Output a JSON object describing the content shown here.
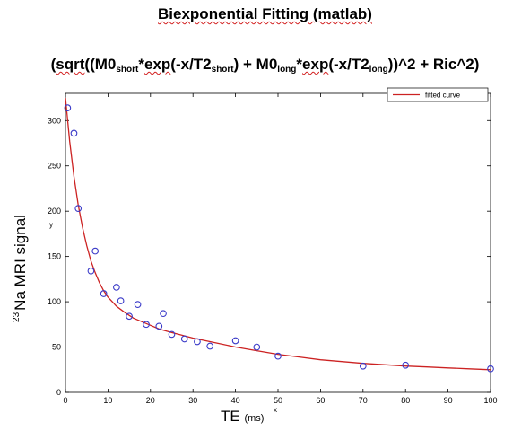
{
  "heading": {
    "title": "Biexponential Fitting (matlab)",
    "formula_parts": [
      "(",
      "sqrt",
      "((M0",
      "short",
      "*",
      "exp",
      "(-x/T2",
      "short",
      ") + M0",
      "long",
      "*",
      "exp",
      "(-x/T2",
      "long",
      "))^2 + Ric^2)"
    ]
  },
  "colors": {
    "curve": "#cc2222",
    "points": "#3a3ac8",
    "axis": "#000000"
  },
  "chart_data": {
    "type": "scatter",
    "xlabel": "TE",
    "xlabel_unit": "(ms)",
    "xlabel_small": "x",
    "ylabel": "Na MRI signal",
    "ylabel_superscript": "23",
    "ylabel_small": "y",
    "xlim": [
      0,
      100
    ],
    "ylim": [
      0,
      330
    ],
    "x_ticks": [
      0,
      10,
      20,
      30,
      40,
      50,
      60,
      70,
      80,
      90,
      100
    ],
    "y_ticks": [
      0,
      50,
      100,
      150,
      200,
      250,
      300
    ],
    "grid": false,
    "legend_position": "top-right",
    "series": [
      {
        "name": "",
        "kind": "points",
        "x": [
          0.5,
          2,
          3,
          6,
          7,
          9,
          12,
          13,
          15,
          17,
          19,
          22,
          23,
          25,
          28,
          31,
          34,
          40,
          45,
          50,
          70,
          80,
          100
        ],
        "y": [
          314,
          286,
          203,
          134,
          156,
          109,
          116,
          101,
          84,
          97,
          75,
          73,
          87,
          64,
          59,
          56,
          51,
          57,
          50,
          40,
          29,
          30,
          26
        ]
      },
      {
        "name": "fitted curve",
        "kind": "line",
        "x": [
          0,
          1,
          2,
          3,
          4,
          5,
          6,
          7,
          8,
          9,
          10,
          12,
          14,
          16,
          18,
          20,
          22,
          25,
          30,
          35,
          40,
          45,
          50,
          55,
          60,
          65,
          70,
          75,
          80,
          85,
          90,
          95,
          100
        ],
        "y": [
          325,
          277,
          238,
          207,
          182,
          162,
          145,
          132,
          121,
          112,
          105,
          95,
          88,
          82,
          78,
          74,
          70,
          66,
          60,
          55,
          50,
          46,
          42,
          39,
          36,
          34,
          32,
          30.5,
          29,
          28,
          27,
          26,
          25
        ]
      }
    ]
  }
}
